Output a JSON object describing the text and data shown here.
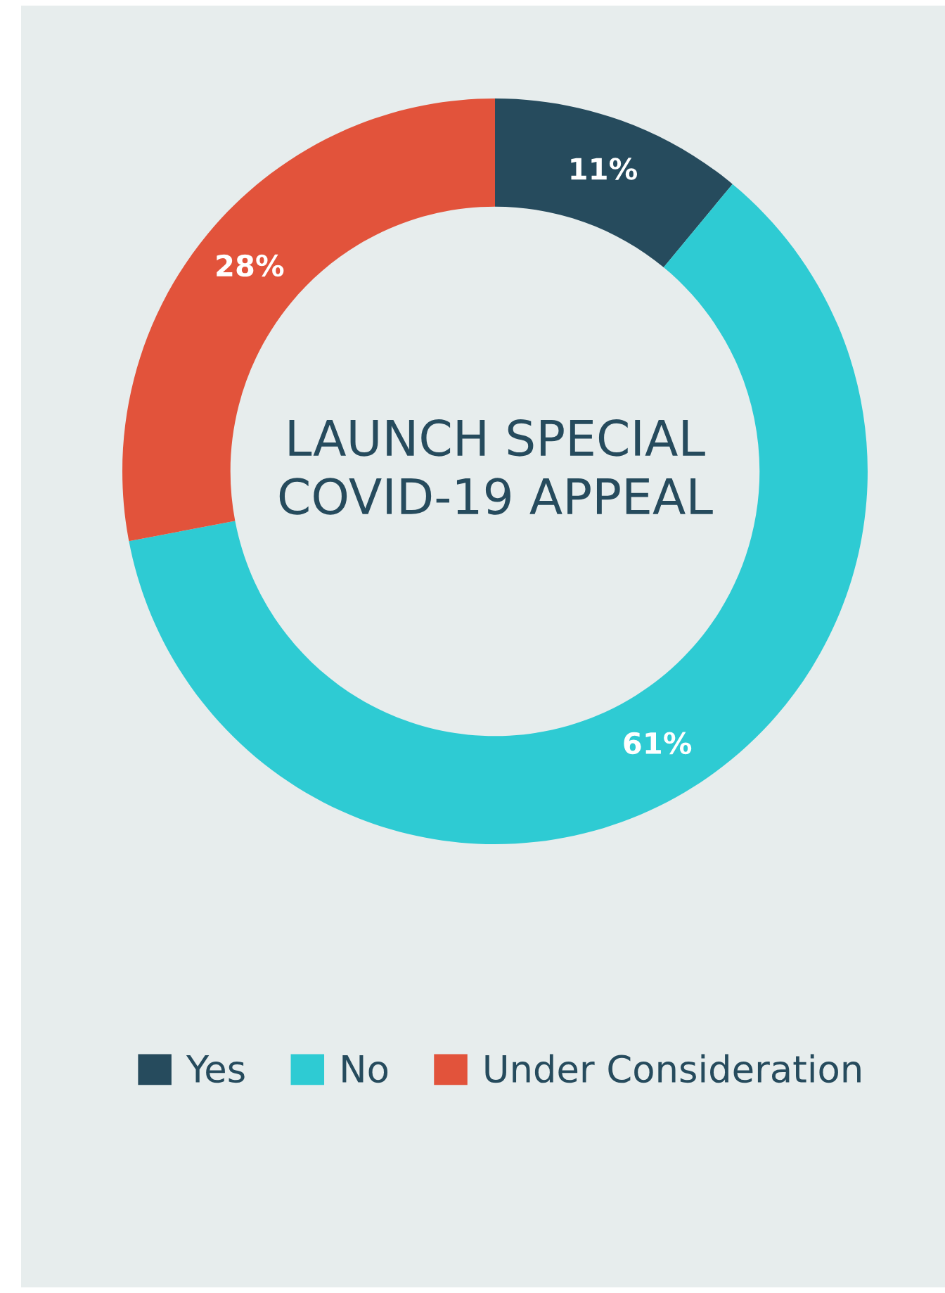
{
  "chart_data": {
    "type": "donut",
    "title": "LAUNCH SPECIAL COVID-19 APPEAL",
    "categories": [
      "Yes",
      "No",
      "Under Consideration"
    ],
    "values": [
      11,
      61,
      28
    ],
    "colors": [
      "#264b5d",
      "#2ecbd3",
      "#e2533b"
    ],
    "value_labels": [
      "11%",
      "61%",
      "28%"
    ],
    "legend": "bottom"
  }
}
